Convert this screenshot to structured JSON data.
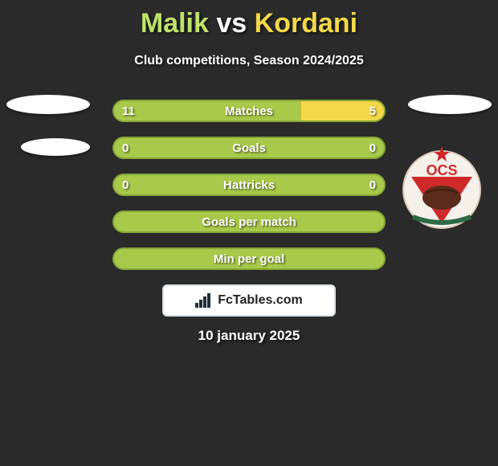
{
  "title": {
    "player1": "Malik",
    "vs": "vs",
    "player2": "Kordani"
  },
  "subtitle": "Club competitions, Season 2024/2025",
  "colors": {
    "bg": "#2a2a2a",
    "left_fill": "#a8c94a",
    "left_border": "#86a636",
    "right_fill": "#f3d84a",
    "text": "#ffffff"
  },
  "bars": [
    {
      "label": "Matches",
      "left": "11",
      "right": "5",
      "right_pct": 31
    },
    {
      "label": "Goals",
      "left": "0",
      "right": "0",
      "right_pct": 0
    },
    {
      "label": "Hattricks",
      "left": "0",
      "right": "0",
      "right_pct": 0
    },
    {
      "label": "Goals per match",
      "left": "",
      "right": "",
      "right_pct": 0
    },
    {
      "label": "Min per goal",
      "left": "",
      "right": "",
      "right_pct": 0
    }
  ],
  "footer": {
    "brand": "FcTables.com",
    "date": "10 january 2025"
  },
  "logo": {
    "circle_bg": "#f5f0ea",
    "tri_red": "#cf2a2a",
    "tri_green": "#2e6a45",
    "text": "OCS",
    "star": "#cf2a2a",
    "ball": "#5a2b1a"
  }
}
